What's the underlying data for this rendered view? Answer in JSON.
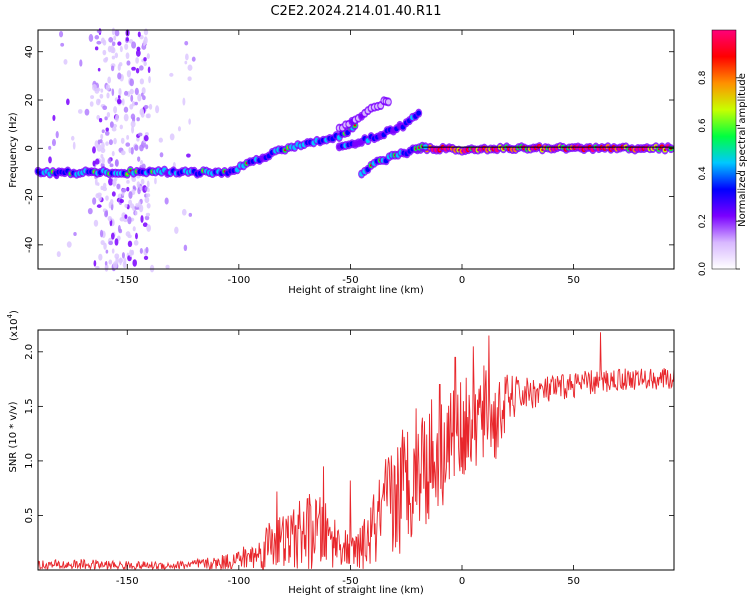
{
  "title": "C2E2.2024.214.01.40.R11",
  "chart_data": [
    {
      "type": "heatmap",
      "name": "spectrogram",
      "xlabel": "Height of straight line (km)",
      "ylabel": "Frequency (Hz)",
      "xlim": [
        -190,
        95
      ],
      "ylim": [
        -50,
        49
      ],
      "xticks": [
        -150,
        -100,
        -50,
        0,
        50
      ],
      "yticks": [
        -40,
        -20,
        0,
        20,
        40
      ],
      "xtick_labels": [
        "-150",
        "-100",
        "-50",
        "0",
        "50"
      ],
      "ytick_labels": [
        "-40",
        "-20",
        "0",
        "20",
        "40"
      ],
      "colorbar": {
        "label": "Normalized spectral amplitude",
        "range": [
          0,
          1
        ],
        "ticks": [
          0.0,
          0.2,
          0.4,
          0.6,
          0.8
        ],
        "tick_labels": [
          "0.0",
          "0.2",
          "0.4",
          "0.6",
          "0.8"
        ],
        "colormap": [
          "#ffffff",
          "#d8b8ff",
          "#7a00ff",
          "#0000ff",
          "#00c8ff",
          "#00ff40",
          "#c8ff00",
          "#ff9000",
          "#ff0000",
          "#ff007a"
        ]
      },
      "traces": [
        {
          "name": "main-echo",
          "points": [
            [
              -190,
              -10
            ],
            [
              -150,
              -10
            ],
            [
              -140,
              -9.5
            ],
            [
              -120,
              -10
            ],
            [
              -105,
              -10
            ],
            [
              -95,
              -6
            ],
            [
              -85,
              -2
            ],
            [
              -75,
              1
            ],
            [
              -65,
              3
            ],
            [
              -55,
              5
            ],
            [
              -50,
              8
            ],
            [
              -47,
              10
            ]
          ],
          "strength": 0.45
        },
        {
          "name": "flat-line",
          "points": [
            [
              -20,
              0
            ],
            [
              -10,
              0
            ],
            [
              0,
              -1
            ],
            [
              10,
              0
            ],
            [
              20,
              0
            ],
            [
              40,
              0
            ],
            [
              60,
              0
            ],
            [
              95,
              0
            ]
          ],
          "strength": 0.9
        },
        {
          "name": "upper-branch",
          "points": [
            [
              -55,
              0
            ],
            [
              -45,
              3
            ],
            [
              -35,
              6
            ],
            [
              -25,
              10
            ],
            [
              -18,
              16
            ]
          ],
          "strength": 0.35
        },
        {
          "name": "middle-branch",
          "points": [
            [
              -45,
              -10
            ],
            [
              -38,
              -6
            ],
            [
              -30,
              -3
            ],
            [
              -22,
              -1
            ],
            [
              -15,
              1
            ]
          ],
          "strength": 0.5
        },
        {
          "name": "faint-upper",
          "points": [
            [
              -55,
              8
            ],
            [
              -45,
              14
            ],
            [
              -35,
              19
            ],
            [
              -32,
              20
            ]
          ],
          "strength": 0.15
        }
      ],
      "scatter_bands": [
        {
          "x_range": [
            -165,
            -140
          ],
          "y_range": [
            -50,
            49
          ],
          "density": 0.9
        },
        {
          "x_range": [
            -185,
            -120
          ],
          "y_range": [
            -50,
            49
          ],
          "density": 0.25
        }
      ]
    },
    {
      "type": "line",
      "name": "snr",
      "xlabel": "Height of straight line (km)",
      "ylabel": "SNR (10 * v/v)",
      "multiplier": "(x10",
      "multiplier_exp": "4",
      "multiplier_close": ")",
      "xlim": [
        -190,
        95
      ],
      "ylim": [
        0,
        2.2
      ],
      "xticks": [
        -150,
        -100,
        -50,
        0,
        50
      ],
      "yticks": [
        0.5,
        1.0,
        1.5,
        2.0
      ],
      "xtick_labels": [
        "-150",
        "-100",
        "-50",
        "0",
        "50"
      ],
      "ytick_labels": [
        "0.5",
        "1.0",
        "1.5",
        "2.0"
      ],
      "color": "#e8262b",
      "envelope": [
        [
          -190,
          0.04,
          0.05
        ],
        [
          -170,
          0.05,
          0.05
        ],
        [
          -150,
          0.04,
          0.04
        ],
        [
          -130,
          0.04,
          0.04
        ],
        [
          -110,
          0.06,
          0.06
        ],
        [
          -100,
          0.1,
          0.1
        ],
        [
          -90,
          0.15,
          0.15
        ],
        [
          -85,
          0.3,
          0.3
        ],
        [
          -80,
          0.25,
          0.25
        ],
        [
          -75,
          0.3,
          0.3
        ],
        [
          -70,
          0.35,
          0.35
        ],
        [
          -65,
          0.35,
          0.35
        ],
        [
          -60,
          0.3,
          0.3
        ],
        [
          -55,
          0.25,
          0.2
        ],
        [
          -50,
          0.15,
          0.15
        ],
        [
          -45,
          0.2,
          0.2
        ],
        [
          -40,
          0.35,
          0.35
        ],
        [
          -35,
          0.5,
          0.5
        ],
        [
          -30,
          0.65,
          0.6
        ],
        [
          -25,
          0.8,
          0.6
        ],
        [
          -20,
          1.0,
          0.6
        ],
        [
          -15,
          1.0,
          0.6
        ],
        [
          -10,
          1.1,
          0.55
        ],
        [
          -5,
          1.2,
          0.5
        ],
        [
          0,
          1.3,
          0.45
        ],
        [
          5,
          1.35,
          0.45
        ],
        [
          10,
          1.4,
          0.5
        ],
        [
          15,
          1.35,
          0.4
        ],
        [
          20,
          1.55,
          0.25
        ],
        [
          25,
          1.6,
          0.18
        ],
        [
          30,
          1.62,
          0.15
        ],
        [
          40,
          1.65,
          0.13
        ],
        [
          50,
          1.7,
          0.12
        ],
        [
          60,
          1.72,
          0.12
        ],
        [
          70,
          1.75,
          0.11
        ],
        [
          80,
          1.75,
          0.1
        ],
        [
          95,
          1.75,
          0.1
        ]
      ],
      "peaks": [
        [
          12,
          2.15
        ],
        [
          5,
          2.05
        ],
        [
          -3,
          1.95
        ],
        [
          62,
          2.18
        ],
        [
          -10,
          1.7
        ],
        [
          -83,
          0.72
        ],
        [
          -62,
          0.95
        ],
        [
          -50,
          0.82
        ]
      ]
    }
  ]
}
